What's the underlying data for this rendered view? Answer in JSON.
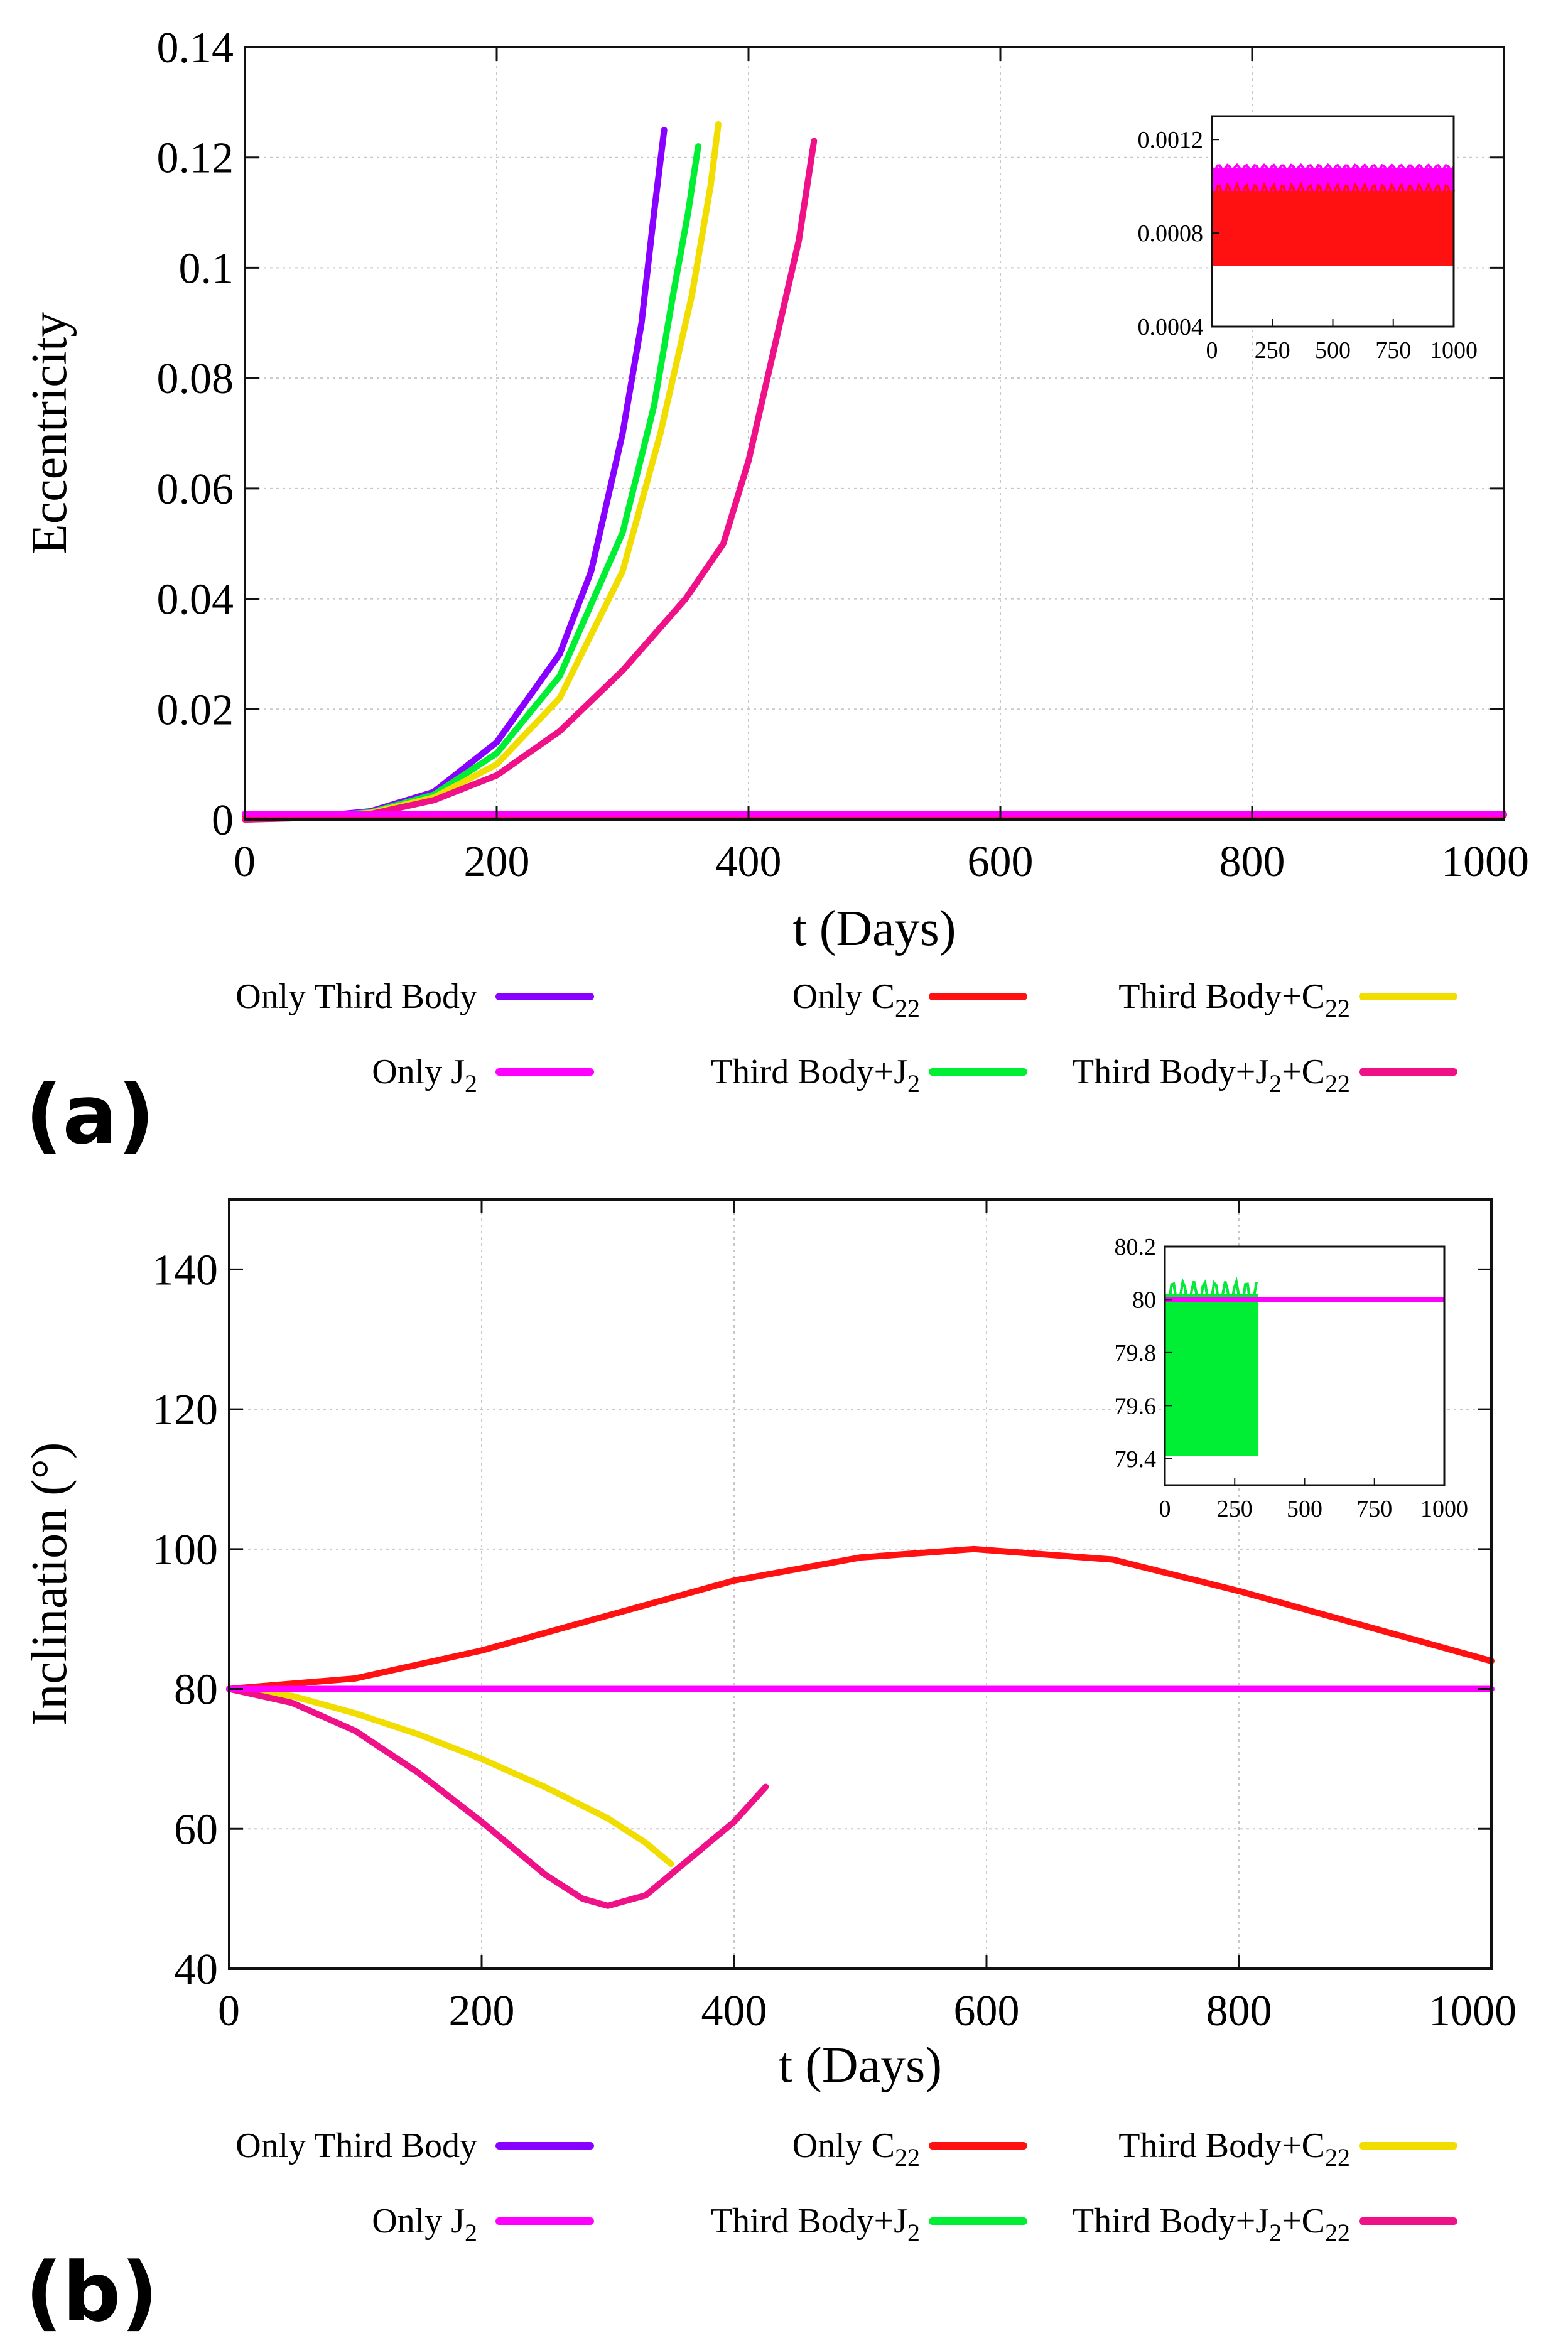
{
  "panels": {
    "a": {
      "label": "(a)"
    },
    "b": {
      "label": "(b)"
    }
  },
  "chart_data": [
    {
      "id": "a",
      "type": "line",
      "xlabel": "t (Days)",
      "ylabel": "Eccentricity",
      "xlim": [
        0,
        1000
      ],
      "ylim": [
        0,
        0.14
      ],
      "xticks": [
        "0",
        "200",
        "400",
        "600",
        "800",
        "1000"
      ],
      "yticks": [
        "0",
        "0.02",
        "0.04",
        "0.06",
        "0.08",
        "0.1",
        "0.12",
        "0.14"
      ],
      "grid": true,
      "series": [
        {
          "key": "third",
          "name": "Only Third Body",
          "color": "#8800ff",
          "points": [
            [
              0,
              0
            ],
            [
              50,
              0.0004
            ],
            [
              100,
              0.0015
            ],
            [
              150,
              0.005
            ],
            [
              200,
              0.014
            ],
            [
              250,
              0.03
            ],
            [
              275,
              0.045
            ],
            [
              300,
              0.07
            ],
            [
              315,
              0.09
            ],
            [
              325,
              0.11
            ],
            [
              333,
              0.125
            ]
          ]
        },
        {
          "key": "third_j2",
          "name": "Third Body+J2",
          "color": "#00ee33",
          "points": [
            [
              0,
              0
            ],
            [
              50,
              0.0004
            ],
            [
              100,
              0.0013
            ],
            [
              150,
              0.0045
            ],
            [
              200,
              0.012
            ],
            [
              250,
              0.026
            ],
            [
              300,
              0.052
            ],
            [
              325,
              0.075
            ],
            [
              340,
              0.095
            ],
            [
              352,
              0.11
            ],
            [
              360,
              0.122
            ]
          ]
        },
        {
          "key": "third_c22",
          "name": "Third Body+C22",
          "color": "#f2dd00",
          "points": [
            [
              0,
              0
            ],
            [
              50,
              0.0003
            ],
            [
              100,
              0.0012
            ],
            [
              150,
              0.004
            ],
            [
              200,
              0.01
            ],
            [
              250,
              0.022
            ],
            [
              300,
              0.045
            ],
            [
              330,
              0.07
            ],
            [
              355,
              0.095
            ],
            [
              370,
              0.115
            ],
            [
              376,
              0.126
            ]
          ]
        },
        {
          "key": "third_j2_c22",
          "name": "Third Body+J2+C22",
          "color": "#ee1188",
          "points": [
            [
              0,
              0
            ],
            [
              50,
              0.0003
            ],
            [
              100,
              0.001
            ],
            [
              150,
              0.0035
            ],
            [
              200,
              0.008
            ],
            [
              250,
              0.016
            ],
            [
              300,
              0.027
            ],
            [
              350,
              0.04
            ],
            [
              380,
              0.05
            ],
            [
              400,
              0.065
            ],
            [
              420,
              0.085
            ],
            [
              440,
              0.105
            ],
            [
              452,
              0.123
            ]
          ]
        },
        {
          "key": "c22",
          "name": "Only C22",
          "color": "#ff1111",
          "points": [
            [
              0,
              0.0008
            ],
            [
              1000,
              0.0008
            ]
          ]
        },
        {
          "key": "j2",
          "name": "Only J2",
          "color": "#ff00ff",
          "points": [
            [
              0,
              0.001
            ],
            [
              1000,
              0.001
            ]
          ]
        }
      ],
      "inset": {
        "xlim": [
          0,
          1000
        ],
        "ylim": [
          0.0004,
          0.0013
        ],
        "xticks": [
          "0",
          "250",
          "500",
          "750",
          "1000"
        ],
        "yticks": [
          "0.0004",
          "0.0008",
          "0.0012"
        ],
        "series": [
          {
            "key": "j2",
            "name": "Only J2",
            "color": "#ff00ff",
            "upper": 0.00108,
            "lower": 0.00094
          },
          {
            "key": "c22",
            "name": "Only C22",
            "color": "#ff1111",
            "upper": 0.00098,
            "lower": 0.00066
          }
        ]
      }
    },
    {
      "id": "b",
      "type": "line",
      "xlabel": "t (Days)",
      "ylabel": "Inclination  (°)",
      "xlim": [
        0,
        1000
      ],
      "ylim": [
        40,
        150
      ],
      "xticks": [
        "0",
        "200",
        "400",
        "600",
        "800",
        "1000"
      ],
      "yticks": [
        "40",
        "60",
        "80",
        "100",
        "120",
        "140"
      ],
      "grid": true,
      "series": [
        {
          "key": "c22",
          "name": "Only C22",
          "color": "#ff1111",
          "points": [
            [
              0,
              80
            ],
            [
              100,
              81.5
            ],
            [
              200,
              85.5
            ],
            [
              300,
              90.5
            ],
            [
              400,
              95.5
            ],
            [
              500,
              98.8
            ],
            [
              590,
              100
            ],
            [
              700,
              98.5
            ],
            [
              800,
              94
            ],
            [
              900,
              89
            ],
            [
              1000,
              84
            ]
          ]
        },
        {
          "key": "third_c22",
          "name": "Third Body+C22",
          "color": "#f2dd00",
          "points": [
            [
              0,
              80
            ],
            [
              50,
              79
            ],
            [
              100,
              76.5
            ],
            [
              150,
              73.5
            ],
            [
              200,
              70
            ],
            [
              250,
              66
            ],
            [
              300,
              61.5
            ],
            [
              330,
              58
            ],
            [
              350,
              55
            ]
          ]
        },
        {
          "key": "third_j2_c22",
          "name": "Third Body+J2+C22",
          "color": "#ee1188",
          "points": [
            [
              0,
              80
            ],
            [
              50,
              78
            ],
            [
              100,
              74
            ],
            [
              150,
              68
            ],
            [
              200,
              61
            ],
            [
              250,
              53.5
            ],
            [
              280,
              50
            ],
            [
              300,
              49
            ],
            [
              330,
              50.5
            ],
            [
              360,
              55
            ],
            [
              400,
              61
            ],
            [
              425,
              66
            ]
          ]
        },
        {
          "key": "third",
          "name": "Only Third Body",
          "color": "#8800ff",
          "points": [
            [
              0,
              80
            ],
            [
              310,
              80
            ]
          ]
        },
        {
          "key": "third_j2",
          "name": "Third Body+J2",
          "color": "#00ee33",
          "points": [
            [
              0,
              80
            ],
            [
              330,
              80
            ]
          ]
        },
        {
          "key": "j2",
          "name": "Only J2",
          "color": "#ff00ff",
          "points": [
            [
              0,
              80
            ],
            [
              1000,
              80
            ]
          ]
        }
      ],
      "inset": {
        "xlim": [
          0,
          1000
        ],
        "ylim": [
          79.3,
          80.2
        ],
        "xticks": [
          "0",
          "250",
          "500",
          "750",
          "1000"
        ],
        "yticks": [
          "79.4",
          "79.6",
          "79.8",
          "80",
          "80.2"
        ],
        "series": [
          {
            "key": "third",
            "name": "Only Third Body",
            "color": "#8800ff",
            "upper": 80.02,
            "lower": 79.42,
            "end": 320
          },
          {
            "key": "third_j2",
            "name": "Third Body+J2",
            "color": "#00ee33",
            "upper": 80.02,
            "lower": 79.41,
            "end": 335
          },
          {
            "key": "j2",
            "name": "Only J2",
            "color": "#ff00ff",
            "value": 80.0,
            "end": 1000
          }
        ]
      }
    }
  ],
  "legend": {
    "items": [
      {
        "key": "third",
        "base": "Only Third Body",
        "sub": "",
        "tail": "",
        "color": "#8800ff"
      },
      {
        "key": "c22",
        "base": "Only C",
        "sub": "22",
        "tail": "",
        "color": "#ff1111"
      },
      {
        "key": "third_c22",
        "base": "Third Body+C",
        "sub": "22",
        "tail": "",
        "color": "#f2dd00"
      },
      {
        "key": "j2",
        "base": "Only J",
        "sub": "2",
        "tail": "",
        "color": "#ff00ff"
      },
      {
        "key": "third_j2",
        "base": "Third Body+J",
        "sub": "2",
        "tail": "",
        "color": "#00ee33"
      },
      {
        "key": "third_j2_c22",
        "base": "Third Body+J",
        "sub": "2",
        "tail": "+C",
        "sub2": "22",
        "color": "#ee1188"
      }
    ]
  }
}
